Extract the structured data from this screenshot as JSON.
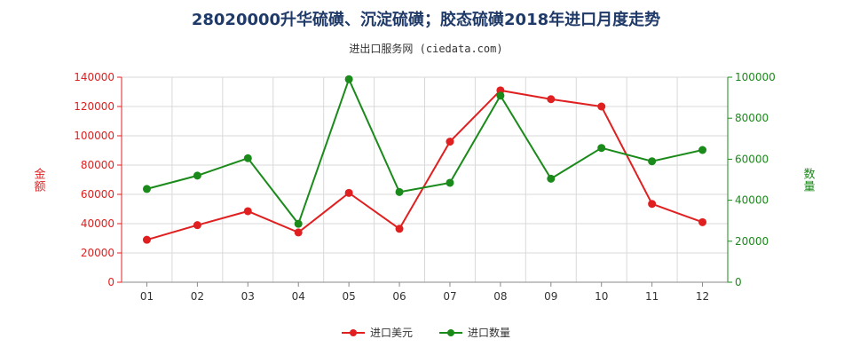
{
  "title": "28020000升华硫磺、沉淀硫磺；胶态硫磺2018年进口月度走势",
  "subtitle": "进出口服务网 (ciedata.com)",
  "chart_data": {
    "type": "line",
    "categories": [
      "01",
      "02",
      "03",
      "04",
      "05",
      "06",
      "07",
      "08",
      "09",
      "10",
      "11",
      "12"
    ],
    "y_left": {
      "label": "金额",
      "range": [
        0,
        140000
      ],
      "ticks": [
        0,
        20000,
        40000,
        60000,
        80000,
        100000,
        120000,
        140000
      ],
      "color": "#e02020"
    },
    "y_right": {
      "label": "数量",
      "range": [
        0,
        100000
      ],
      "ticks": [
        0,
        20000,
        40000,
        60000,
        80000,
        100000
      ],
      "color": "#1a8a1a"
    },
    "grid": true,
    "legend_position": "bottom",
    "series": [
      {
        "name": "进口美元",
        "axis": "left",
        "color": "#e02020",
        "values": [
          29000,
          39000,
          48500,
          34000,
          61000,
          36500,
          96000,
          131000,
          125000,
          120000,
          53500,
          41000
        ]
      },
      {
        "name": "进口数量",
        "axis": "right",
        "color": "#1a8a1a",
        "values": [
          45500,
          52000,
          60500,
          28500,
          99000,
          44000,
          48500,
          91000,
          50500,
          65500,
          59000,
          64500
        ]
      }
    ]
  }
}
